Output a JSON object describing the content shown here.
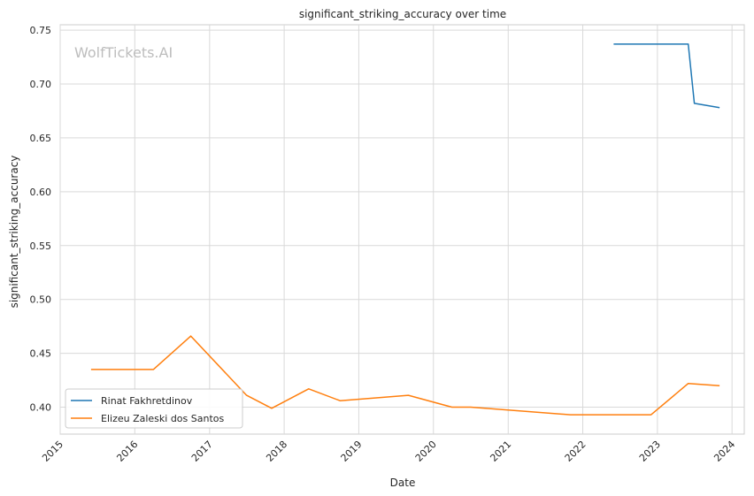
{
  "watermark": "WolfTickets.AI",
  "chart_data": {
    "type": "line",
    "title": "significant_striking_accuracy over time",
    "xlabel": "Date",
    "ylabel": "significant_striking_accuracy",
    "xlim": [
      "2015-01-01",
      "2024-03-01"
    ],
    "ylim": [
      0.375,
      0.755
    ],
    "x_ticks": [
      "2015",
      "2016",
      "2017",
      "2018",
      "2019",
      "2020",
      "2021",
      "2022",
      "2023",
      "2024"
    ],
    "y_ticks": [
      "0.40",
      "0.45",
      "0.50",
      "0.55",
      "0.60",
      "0.65",
      "0.70",
      "0.75"
    ],
    "grid": true,
    "legend_position": "lower-left",
    "series": [
      {
        "name": "Rinat Fakhretdinov",
        "color": "#1f77b4",
        "points": [
          [
            "2022-06-01",
            0.737
          ],
          [
            "2023-06-01",
            0.737
          ],
          [
            "2023-07-01",
            0.682
          ],
          [
            "2023-11-01",
            0.678
          ]
        ]
      },
      {
        "name": "Elizeu Zaleski dos Santos",
        "color": "#ff7f0e",
        "points": [
          [
            "2015-06-01",
            0.435
          ],
          [
            "2016-04-01",
            0.435
          ],
          [
            "2016-10-01",
            0.466
          ],
          [
            "2017-07-01",
            0.411
          ],
          [
            "2017-11-01",
            0.399
          ],
          [
            "2018-05-01",
            0.417
          ],
          [
            "2018-10-01",
            0.406
          ],
          [
            "2019-09-01",
            0.411
          ],
          [
            "2020-04-01",
            0.4
          ],
          [
            "2020-07-01",
            0.4
          ],
          [
            "2021-11-01",
            0.393
          ],
          [
            "2022-12-01",
            0.393
          ],
          [
            "2023-06-01",
            0.422
          ],
          [
            "2023-11-01",
            0.42
          ]
        ]
      }
    ]
  }
}
